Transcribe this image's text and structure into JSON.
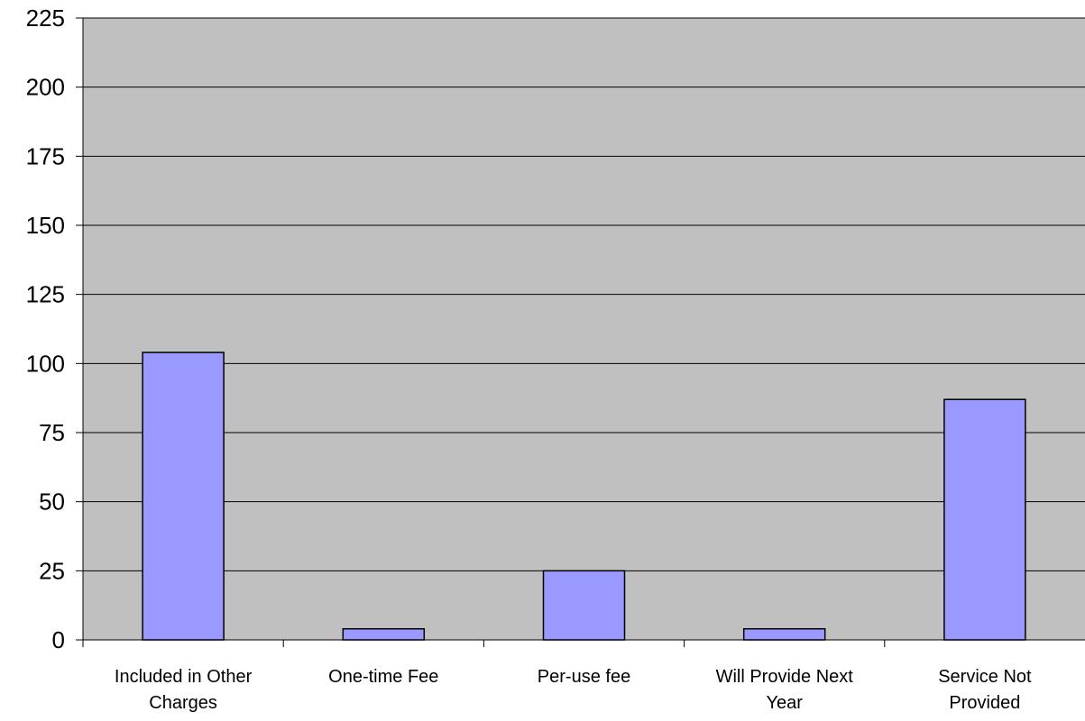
{
  "chart_data": {
    "type": "bar",
    "categories": [
      [
        "Included in Other",
        "Charges"
      ],
      [
        "One-time Fee"
      ],
      [
        "Per-use fee"
      ],
      [
        "Will Provide Next",
        "Year"
      ],
      [
        "Service Not",
        "Provided"
      ]
    ],
    "values": [
      104,
      4,
      25,
      4,
      87
    ],
    "ylim": [
      0,
      225
    ],
    "yticks": [
      "0",
      "25",
      "50",
      "75",
      "100",
      "125",
      "150",
      "175",
      "200",
      "225"
    ],
    "grid": true,
    "legend": "none",
    "title": "",
    "xlabel": "",
    "ylabel": "",
    "colors": {
      "plot_background": "#c0c0c0",
      "bar_fill": "#9999ff",
      "bar_stroke": "#000000",
      "gridline": "#000000"
    }
  }
}
